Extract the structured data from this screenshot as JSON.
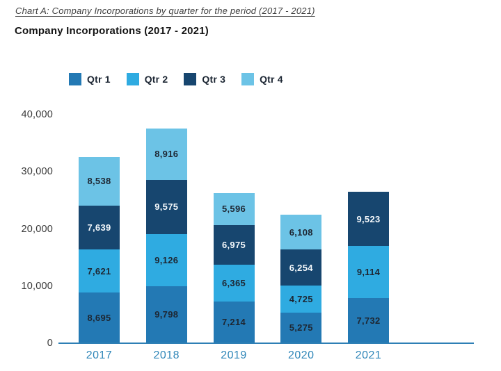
{
  "page": {
    "caption": "Chart A: Company Incorporations by quarter for the period (2017 - 2021)",
    "title": "Company Incorporations (2017 - 2021)"
  },
  "colors": {
    "qtr1": "#2379b4",
    "qtr2": "#2fabe1",
    "qtr3": "#17466f",
    "qtr4": "#6cc3e6",
    "axis_line": "#2e7fb5",
    "year_label": "#2e86b8",
    "tick_label": "#3a3a3a",
    "value_label_dark": "#1e2733",
    "value_label_light": "#f4f8fb",
    "legend_label": "#1c2633"
  },
  "chart_data": {
    "type": "bar",
    "stacked": true,
    "title": "Company Incorporations (2017 - 2021)",
    "categories": [
      "2017",
      "2018",
      "2019",
      "2020",
      "2021"
    ],
    "series": [
      {
        "name": "Qtr 1",
        "color": "#2379b4",
        "label_color": "#1e2733",
        "values": [
          8695,
          9798,
          7214,
          5275,
          7732
        ]
      },
      {
        "name": "Qtr 2",
        "color": "#2fabe1",
        "label_color": "#1e2733",
        "values": [
          7621,
          9126,
          6365,
          4725,
          9114
        ]
      },
      {
        "name": "Qtr 3",
        "color": "#17466f",
        "label_color": "#f4f8fb",
        "values": [
          7639,
          9575,
          6975,
          6254,
          9523
        ]
      },
      {
        "name": "Qtr 4",
        "color": "#6cc3e6",
        "label_color": "#1e2733",
        "values": [
          8538,
          8916,
          5596,
          6108,
          null
        ]
      }
    ],
    "ylim": [
      0,
      40000
    ],
    "yticks": [
      0,
      10000,
      20000,
      30000,
      40000
    ],
    "grid": false,
    "legend_position": "top",
    "data_labels": true,
    "xlabel": "",
    "ylabel": ""
  }
}
